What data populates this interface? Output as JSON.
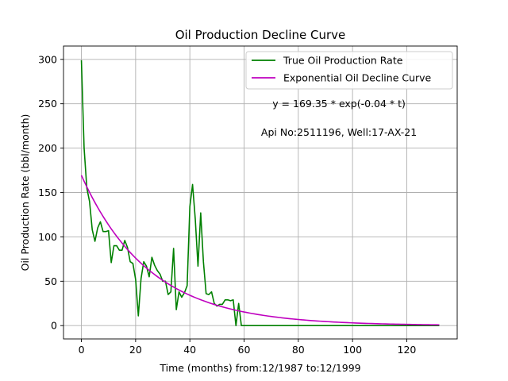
{
  "chart_data": {
    "type": "line",
    "title": "Oil Production Decline Curve",
    "xlabel": "Time (months) from:12/1987 to:12/1999",
    "ylabel": "Oil Production Rate (bbl/month)",
    "xlim": [
      -6.6,
      138.6
    ],
    "ylim": [
      -15,
      315
    ],
    "x_ticks": [
      0,
      20,
      40,
      60,
      80,
      100,
      120
    ],
    "y_ticks": [
      0,
      50,
      100,
      150,
      200,
      250,
      300
    ],
    "grid": true,
    "legend_placement": "top-right",
    "annotations": [
      {
        "text": "y = 169.35 * exp(-0.04 * t)",
        "x": 95,
        "y": 246
      },
      {
        "text": "Api No:2511196, Well:17-AX-21",
        "x": 95,
        "y": 214
      }
    ],
    "series": [
      {
        "name": "True Oil Production Rate",
        "color": "#008000",
        "x": [
          0,
          1,
          2,
          3,
          4,
          5,
          6,
          7,
          8,
          9,
          10,
          11,
          12,
          13,
          14,
          15,
          16,
          17,
          18,
          19,
          20,
          21,
          22,
          23,
          24,
          25,
          26,
          27,
          28,
          29,
          30,
          31,
          32,
          33,
          34,
          35,
          36,
          37,
          38,
          39,
          40,
          41,
          42,
          43,
          44,
          45,
          46,
          47,
          48,
          49,
          50,
          51,
          52,
          53,
          54,
          55,
          56,
          57,
          58,
          59,
          60,
          61,
          62,
          63,
          64,
          65,
          66,
          67,
          68,
          69,
          70,
          71,
          72,
          73,
          74,
          75,
          76,
          77,
          78,
          79,
          80,
          81,
          82,
          83,
          84,
          85,
          86,
          87,
          88,
          89,
          90,
          91,
          92,
          93,
          94,
          95,
          96,
          97,
          98,
          99,
          100,
          101,
          102,
          103,
          104,
          105,
          106,
          107,
          108,
          109,
          110,
          111,
          112,
          113,
          114,
          115,
          116,
          117,
          118,
          119,
          120,
          121,
          122,
          123,
          124,
          125,
          126,
          127,
          128,
          129,
          130,
          131,
          132
        ],
        "y": [
          299,
          200,
          155,
          140,
          108,
          95,
          110,
          117,
          106,
          106,
          107,
          71,
          90,
          90,
          85,
          85,
          96,
          88,
          72,
          70,
          52,
          11,
          53,
          72,
          67,
          55,
          77,
          68,
          62,
          58,
          50,
          50,
          35,
          38,
          87,
          18,
          38,
          32,
          37,
          45,
          134,
          159,
          120,
          67,
          127,
          72,
          36,
          35,
          38,
          25,
          22,
          24,
          24,
          29,
          29,
          28,
          29,
          0,
          25,
          0,
          0,
          0,
          0,
          0,
          0,
          0,
          0,
          0,
          0,
          0,
          0,
          0,
          0,
          0,
          0,
          0,
          0,
          0,
          0,
          0,
          0,
          0,
          0,
          0,
          0,
          0,
          0,
          0,
          0,
          0,
          0,
          0,
          0,
          0,
          0,
          0,
          0,
          0,
          0,
          0,
          0,
          0,
          0,
          0,
          0,
          0,
          0,
          0,
          0,
          0,
          0,
          0,
          0,
          0,
          0,
          0,
          0,
          0,
          0,
          0,
          0,
          0,
          0,
          0,
          0,
          0,
          0,
          0,
          0,
          0,
          0,
          0,
          0
        ]
      },
      {
        "name": "Exponential Oil Decline Curve",
        "color": "#bf00bf",
        "model": {
          "a": 169.35,
          "b": -0.04,
          "x_start": 0,
          "x_end": 132
        }
      }
    ]
  }
}
